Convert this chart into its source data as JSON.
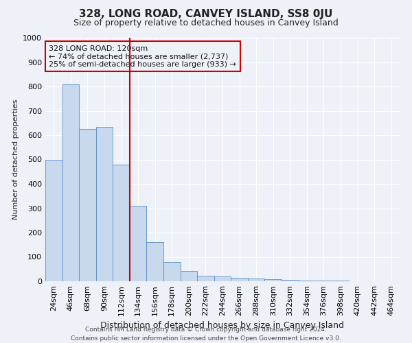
{
  "title": "328, LONG ROAD, CANVEY ISLAND, SS8 0JU",
  "subtitle": "Size of property relative to detached houses in Canvey Island",
  "xlabel": "Distribution of detached houses by size in Canvey Island",
  "ylabel": "Number of detached properties",
  "footer_line1": "Contains HM Land Registry data © Crown copyright and database right 2024.",
  "footer_line2": "Contains public sector information licensed under the Open Government Licence v3.0.",
  "categories": [
    "24sqm",
    "46sqm",
    "68sqm",
    "90sqm",
    "112sqm",
    "134sqm",
    "156sqm",
    "178sqm",
    "200sqm",
    "222sqm",
    "244sqm",
    "266sqm",
    "288sqm",
    "310sqm",
    "332sqm",
    "354sqm",
    "376sqm",
    "398sqm",
    "420sqm",
    "442sqm",
    "464sqm"
  ],
  "values": [
    500,
    808,
    625,
    635,
    480,
    310,
    160,
    80,
    43,
    22,
    20,
    13,
    10,
    8,
    5,
    3,
    2,
    2,
    1,
    0,
    0
  ],
  "bar_color": "#c8d9ee",
  "bar_edge_color": "#5b8dc8",
  "ylim": [
    0,
    1000
  ],
  "yticks": [
    0,
    100,
    200,
    300,
    400,
    500,
    600,
    700,
    800,
    900,
    1000
  ],
  "vline_x": 4.5,
  "vline_color": "#cc0000",
  "annotation_text_line1": "328 LONG ROAD: 120sqm",
  "annotation_text_line2": "← 74% of detached houses are smaller (2,737)",
  "annotation_text_line3": "25% of semi-detached houses are larger (933) →",
  "background_color": "#eef2f8",
  "grid_color": "#ffffff",
  "title_fontsize": 11,
  "subtitle_fontsize": 9,
  "xlabel_fontsize": 9,
  "ylabel_fontsize": 8,
  "tick_fontsize": 8,
  "annot_fontsize": 8,
  "footer_fontsize": 6.5
}
